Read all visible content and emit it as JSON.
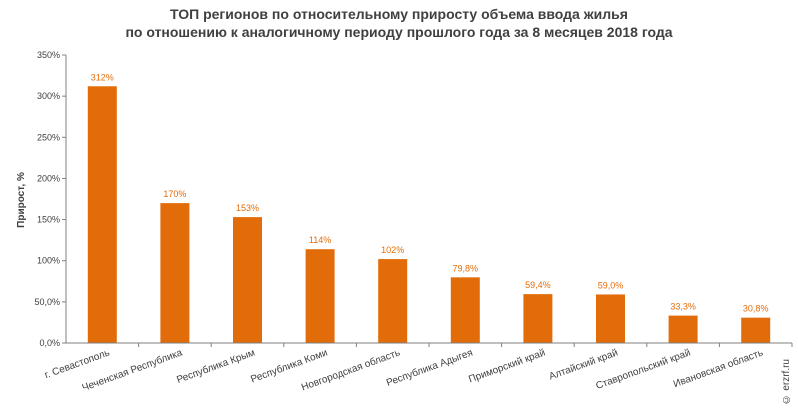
{
  "title_line1": "ТОП регионов по относительному приросту объема ввода жилья",
  "title_line2": "по отношению к аналогичному периоду прошлого года за 8 месяцев 2018 года",
  "watermark": "© erzrf.ru",
  "colors": {
    "bar": "#e36c0a",
    "label": "#e36c0a",
    "axis": "#808080",
    "grid": "#d9d9d9",
    "text": "#404040"
  },
  "chart_data": {
    "type": "bar",
    "title": "ТОП регионов по относительному приросту объема ввода жилья по отношению к аналогичному периоду прошлого года за 8 месяцев 2018 года",
    "xlabel": "",
    "ylabel": "Прирост, %",
    "ylim": [
      0,
      350
    ],
    "yticks": [
      0,
      50,
      100,
      150,
      200,
      250,
      300,
      350
    ],
    "ytick_labels": [
      "0,0%",
      "50,0%",
      "100%",
      "150%",
      "200%",
      "250%",
      "300%",
      "350%"
    ],
    "categories": [
      "г. Севастополь",
      "Чеченская Республика",
      "Республика Крым",
      "Республика Коми",
      "Новгородская область",
      "Республика Адыгея",
      "Приморский край",
      "Алтайский край",
      "Ставропольский край",
      "Ивановская область"
    ],
    "values": [
      312,
      170,
      153,
      114,
      102,
      79.8,
      59.4,
      59.0,
      33.3,
      30.8
    ],
    "data_labels": [
      "312%",
      "170%",
      "153%",
      "114%",
      "102%",
      "79,8%",
      "59,4%",
      "59,0%",
      "33,3%",
      "30,8%"
    ],
    "grid": false,
    "legend": "none"
  }
}
